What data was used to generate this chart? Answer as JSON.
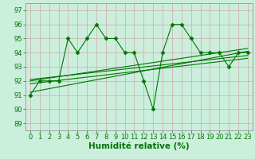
{
  "x": [
    0,
    1,
    2,
    3,
    4,
    5,
    6,
    7,
    8,
    9,
    10,
    11,
    12,
    13,
    14,
    15,
    16,
    17,
    18,
    19,
    20,
    21,
    22,
    23
  ],
  "y_main": [
    91,
    92,
    92,
    92,
    95,
    94,
    95,
    96,
    95,
    95,
    94,
    94,
    92,
    90,
    94,
    96,
    96,
    95,
    94,
    94,
    94,
    93,
    94,
    94
  ],
  "trend_lines": [
    {
      "x0": 0,
      "y0": 91.2,
      "x1": 23,
      "y1": 94.1
    },
    {
      "x0": 0,
      "y0": 91.8,
      "x1": 23,
      "y1": 93.6
    },
    {
      "x0": 0,
      "y0": 92.0,
      "x1": 23,
      "y1": 94.3
    },
    {
      "x0": 0,
      "y0": 92.1,
      "x1": 23,
      "y1": 93.8
    }
  ],
  "xlabel": "Humidité relative (%)",
  "ylim": [
    88.5,
    97.5
  ],
  "xlim": [
    -0.5,
    23.5
  ],
  "yticks": [
    89,
    90,
    91,
    92,
    93,
    94,
    95,
    96,
    97
  ],
  "xticks": [
    0,
    1,
    2,
    3,
    4,
    5,
    6,
    7,
    8,
    9,
    10,
    11,
    12,
    13,
    14,
    15,
    16,
    17,
    18,
    19,
    20,
    21,
    22,
    23
  ],
  "line_color": "#007700",
  "bg_color": "#cceedd",
  "grid_color": "#bbccbb",
  "marker": "D",
  "marker_size": 2.5,
  "line_width": 0.8,
  "xlabel_fontsize": 7.5,
  "xlabel_color": "#007700",
  "tick_color": "#007700",
  "tick_fontsize": 6.0,
  "spine_color": "#888888"
}
